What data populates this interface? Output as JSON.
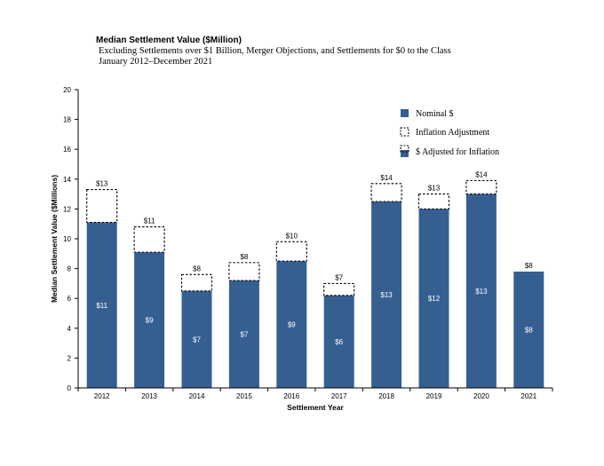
{
  "chart_data": {
    "type": "bar",
    "title": "Median Settlement Value ($Million)",
    "subtitle": "Excluding Settlements over $1 Billion, Merger Objections, and Settlements for $0 to the Class",
    "period": "January 2012–December 2021",
    "xlabel": "Settlement Year",
    "ylabel": "Median Settlement Value ($Millions)",
    "ylim": [
      0,
      20
    ],
    "yticks": [
      "0",
      "2",
      "4",
      "6",
      "8",
      "10",
      "12",
      "14",
      "16",
      "18",
      "20"
    ],
    "categories": [
      "2012",
      "2013",
      "2014",
      "2015",
      "2016",
      "2017",
      "2018",
      "2019",
      "2020",
      "2021"
    ],
    "series": [
      {
        "name": "Nominal $",
        "values": [
          11.1,
          9.1,
          6.5,
          7.2,
          8.5,
          6.2,
          12.5,
          12.0,
          13.0,
          7.8
        ],
        "labels": [
          "$11",
          "$9",
          "$7",
          "$7",
          "$9",
          "$6",
          "$13",
          "$12",
          "$13",
          "$8"
        ]
      },
      {
        "name": "Inflation Adjustment",
        "values": [
          2.2,
          1.7,
          1.1,
          1.2,
          1.3,
          0.8,
          1.2,
          1.0,
          0.9,
          0.0
        ]
      },
      {
        "name": "$ Adjusted for Inflation",
        "values": [
          13.3,
          10.8,
          7.6,
          8.4,
          9.8,
          7.0,
          13.7,
          13.0,
          13.9,
          7.8
        ],
        "labels": [
          "$13",
          "$11",
          "$8",
          "$8",
          "$10",
          "$7",
          "$14",
          "$13",
          "$14",
          "$8"
        ]
      }
    ],
    "legend_position": "top-right",
    "colors": {
      "bar": "#365f91",
      "label": "#ffffff",
      "axis": "#000000"
    }
  }
}
